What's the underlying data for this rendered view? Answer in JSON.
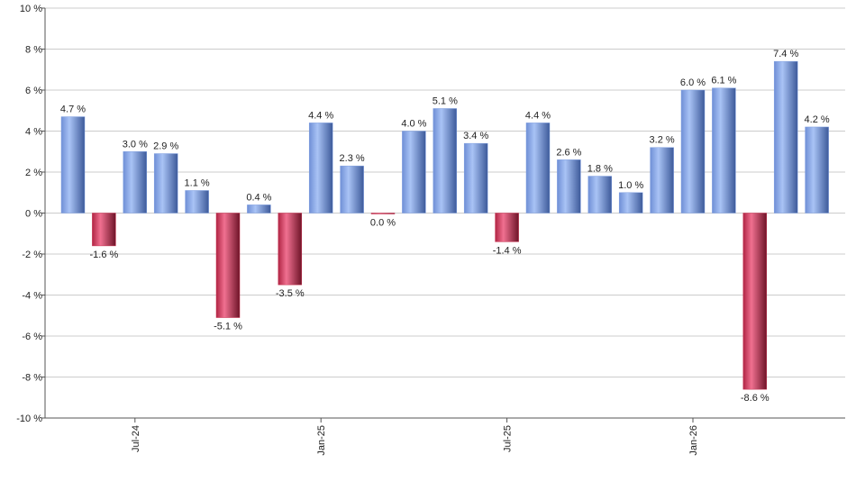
{
  "chart_data": {
    "type": "bar",
    "categories": [
      null,
      null,
      "Jul-24",
      null,
      null,
      null,
      null,
      null,
      "Jan-25",
      null,
      null,
      null,
      null,
      null,
      "Jul-25",
      null,
      null,
      null,
      null,
      null,
      "Jan-26",
      null,
      null,
      null,
      null
    ],
    "values": [
      4.7,
      -1.6,
      3.0,
      2.9,
      1.1,
      -5.1,
      0.4,
      -3.5,
      4.4,
      2.3,
      -0.02,
      4.0,
      5.1,
      3.4,
      -1.4,
      4.4,
      2.6,
      1.8,
      1.0,
      3.2,
      6.0,
      6.1,
      -8.6,
      7.4,
      4.2
    ],
    "value_labels": [
      "4.7 %",
      "-1.6 %",
      "3.0 %",
      "2.9 %",
      "1.1 %",
      "-5.1 %",
      "0.4 %",
      "-3.5 %",
      "4.4 %",
      "2.3 %",
      "0.0 %",
      "4.0 %",
      "5.1 %",
      "3.4 %",
      "-1.4 %",
      "4.4 %",
      "2.6 %",
      "1.8 %",
      "1.0 %",
      "3.2 %",
      "6.0 %",
      "6.1 %",
      "-8.6 %",
      "7.4 %",
      "4.2 %"
    ],
    "positive_color": "#7f9fe0",
    "negative_color": "#c8304f",
    "ylim": [
      -10,
      10
    ],
    "yticks": [
      {
        "value": -10,
        "label": "-10 %"
      },
      {
        "value": -8,
        "label": "-8 %"
      },
      {
        "value": -6,
        "label": "-6 %"
      },
      {
        "value": -4,
        "label": "-4 %"
      },
      {
        "value": -2,
        "label": "-2 %"
      },
      {
        "value": 0,
        "label": "0 %"
      },
      {
        "value": 2,
        "label": "2 %"
      },
      {
        "value": 4,
        "label": "4 %"
      },
      {
        "value": 6,
        "label": "6 %"
      },
      {
        "value": 8,
        "label": "8 %"
      },
      {
        "value": 10,
        "label": "10 %"
      }
    ],
    "grid": true
  }
}
